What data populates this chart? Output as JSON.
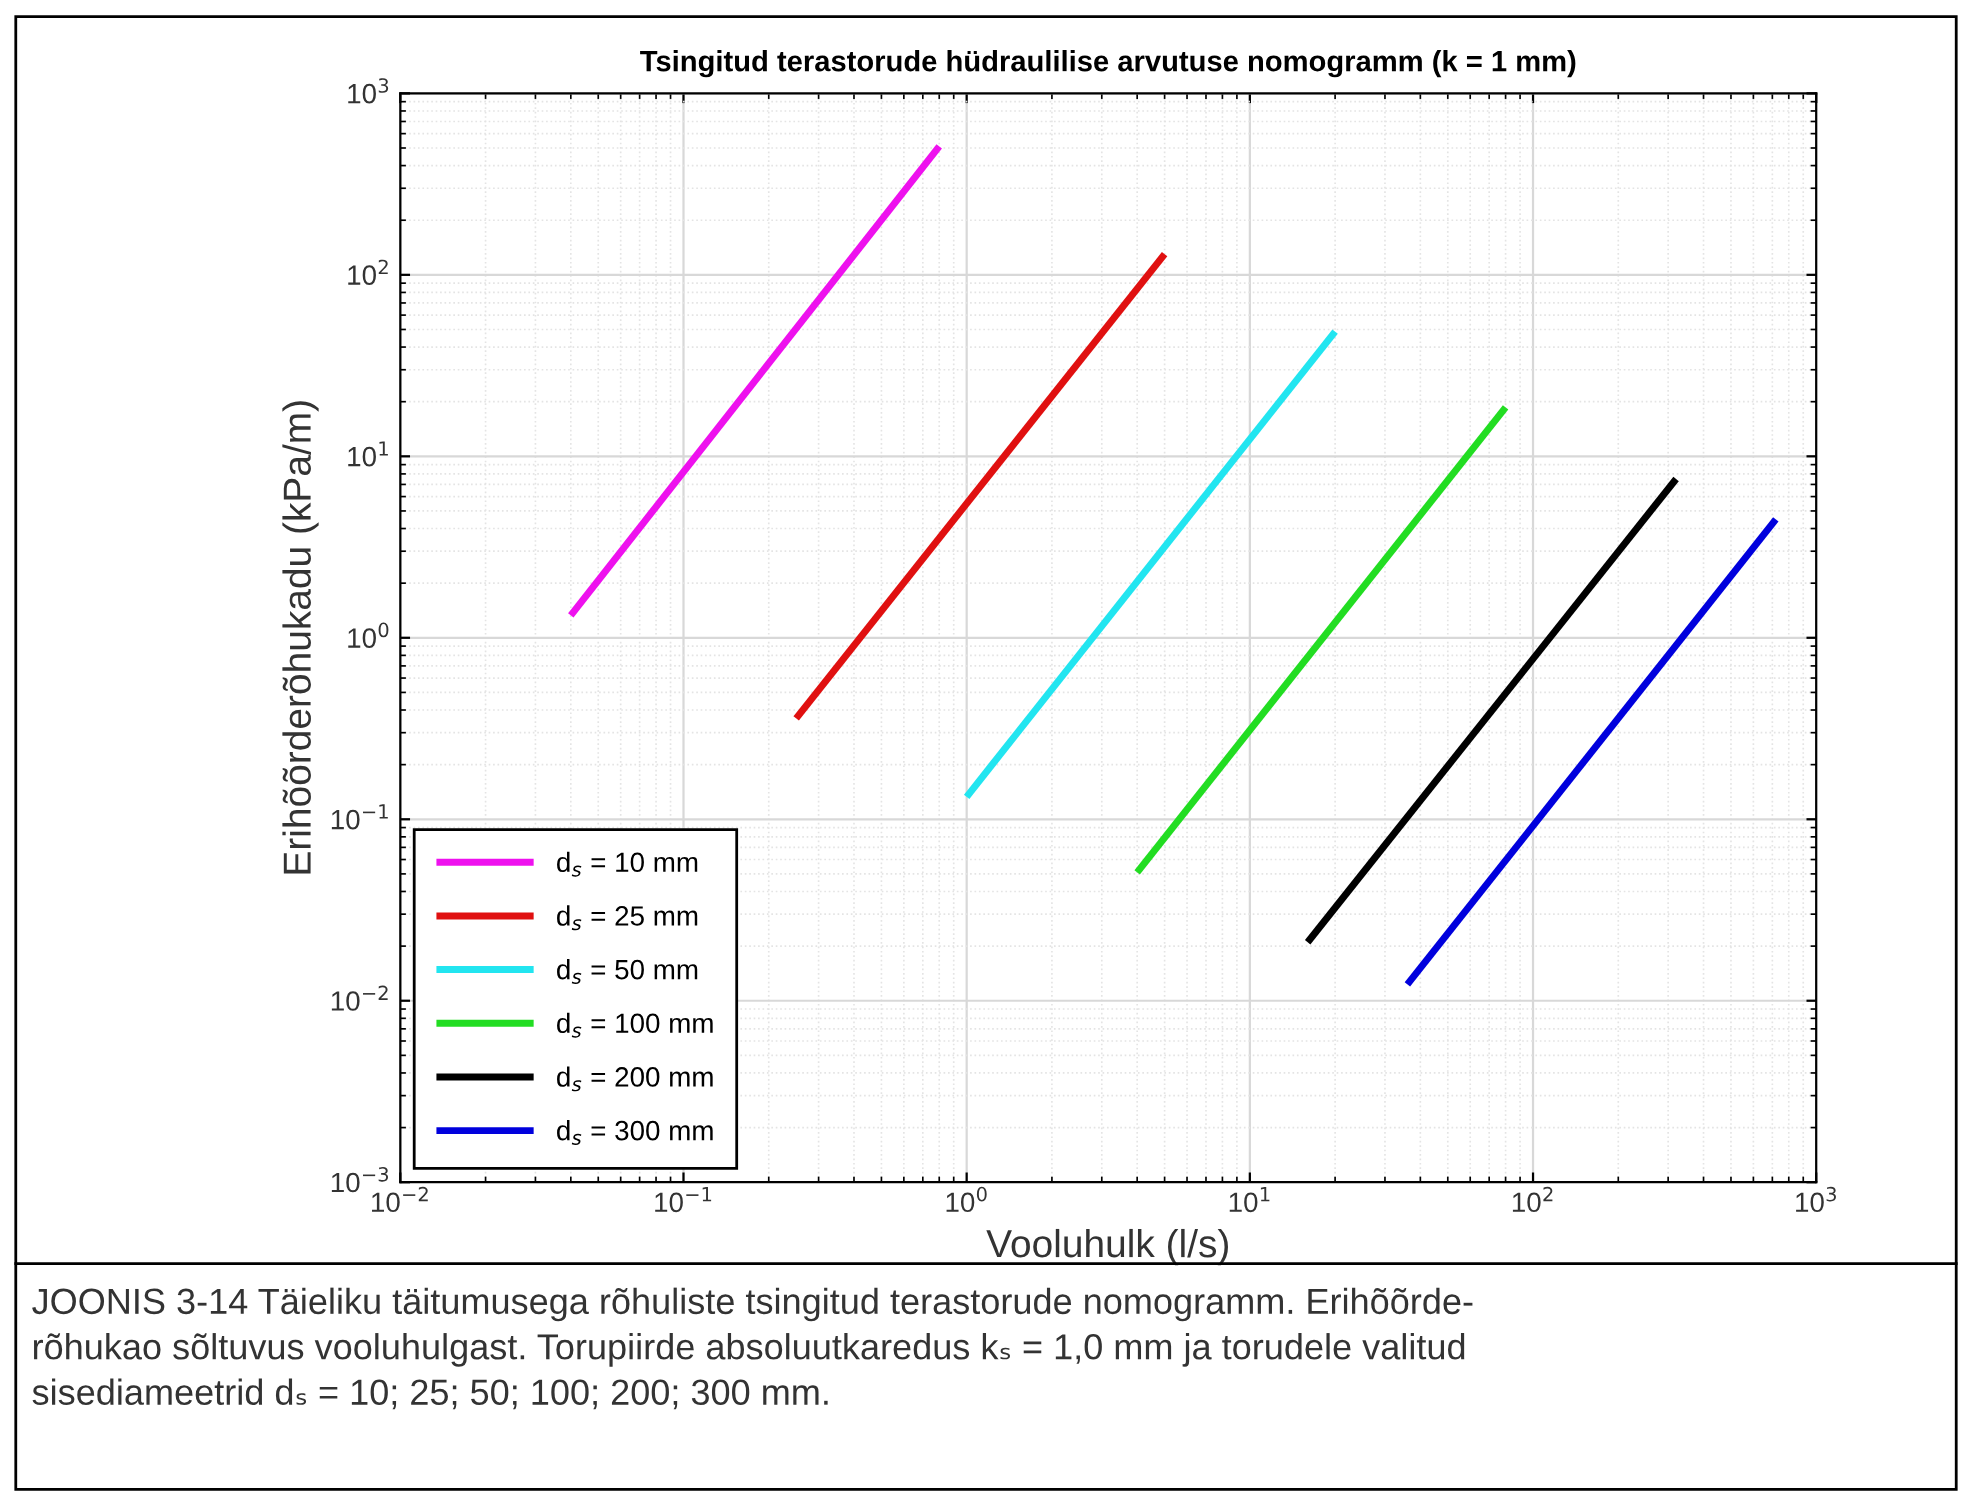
{
  "chart_data": {
    "type": "line",
    "title": "Tsingitud terastorude hüdraulilise arvutuse nomogramm (k = 1 mm)",
    "xlabel": "Vooluhulk (l/s)",
    "ylabel": "Erihõõrderõhukadu (kPa/m)",
    "log": "xy",
    "grid": true,
    "legend": "bottom left",
    "line_style": "solid",
    "xlim": [
      0.01,
      1000
    ],
    "ylim": [
      0.001,
      1000
    ],
    "xticks": [
      {
        "value": 0.01,
        "label": "10$^{−2}$"
      },
      {
        "value": 0.1,
        "label": "10$^{−1}$"
      },
      {
        "value": 1,
        "label": "10$^{0}$"
      },
      {
        "value": 10,
        "label": "10$^{1}$"
      },
      {
        "value": 100,
        "label": "10$^{2}$"
      },
      {
        "value": 1000,
        "label": "10$^{3}$"
      }
    ],
    "yticks": [
      {
        "value": 0.001,
        "label": "10$^{−3}$"
      },
      {
        "value": 0.01,
        "label": "10$^{−2}$"
      },
      {
        "value": 0.1,
        "label": "10$^{−1}$"
      },
      {
        "value": 1,
        "label": "10$^{0}$"
      },
      {
        "value": 10,
        "label": "10$^{1}$"
      },
      {
        "value": 100,
        "label": "10$^{2}$"
      },
      {
        "value": 1000,
        "label": "10$^{3}$"
      }
    ],
    "series": [
      {
        "name": "d$_{s}$ = 10 mm",
        "color": "#ee11ee",
        "x": [
          0.04,
          0.8
        ],
        "values": [
          1.33,
          510
        ]
      },
      {
        "name": "d$_{s}$ = 25 mm",
        "color": "#e01010",
        "x": [
          0.25,
          5
        ],
        "values": [
          0.36,
          130
        ]
      },
      {
        "name": "d$_{s}$ = 50 mm",
        "color": "#22e5f0",
        "x": [
          1,
          20
        ],
        "values": [
          0.133,
          48.7
        ]
      },
      {
        "name": "d$_{s}$ = 100 mm",
        "color": "#22dd22",
        "x": [
          4,
          80
        ],
        "values": [
          0.051,
          18.6
        ]
      },
      {
        "name": "d$_{s}$ = 200 mm",
        "color": "#000000",
        "x": [
          16,
          320
        ],
        "values": [
          0.021,
          7.5
        ]
      },
      {
        "name": "d$_{s}$ = 300 mm",
        "color": "#0000dd",
        "x": [
          36,
          720
        ],
        "values": [
          0.0123,
          4.49
        ]
      }
    ],
    "annotations": [
      "JOONIS 3-14 Täieliku täitumusega rõhuliste tsingitud terastorude nomogramm. Erihõõrde-\nrõhukao sõltuvus vooluhulgast. Torupiirde absoluutkaredus kₛ = 1,0 mm ja torudele valitud\nsisediameetrid dₛ = 10; 25; 50; 100; 200; 300 mm."
    ]
  }
}
